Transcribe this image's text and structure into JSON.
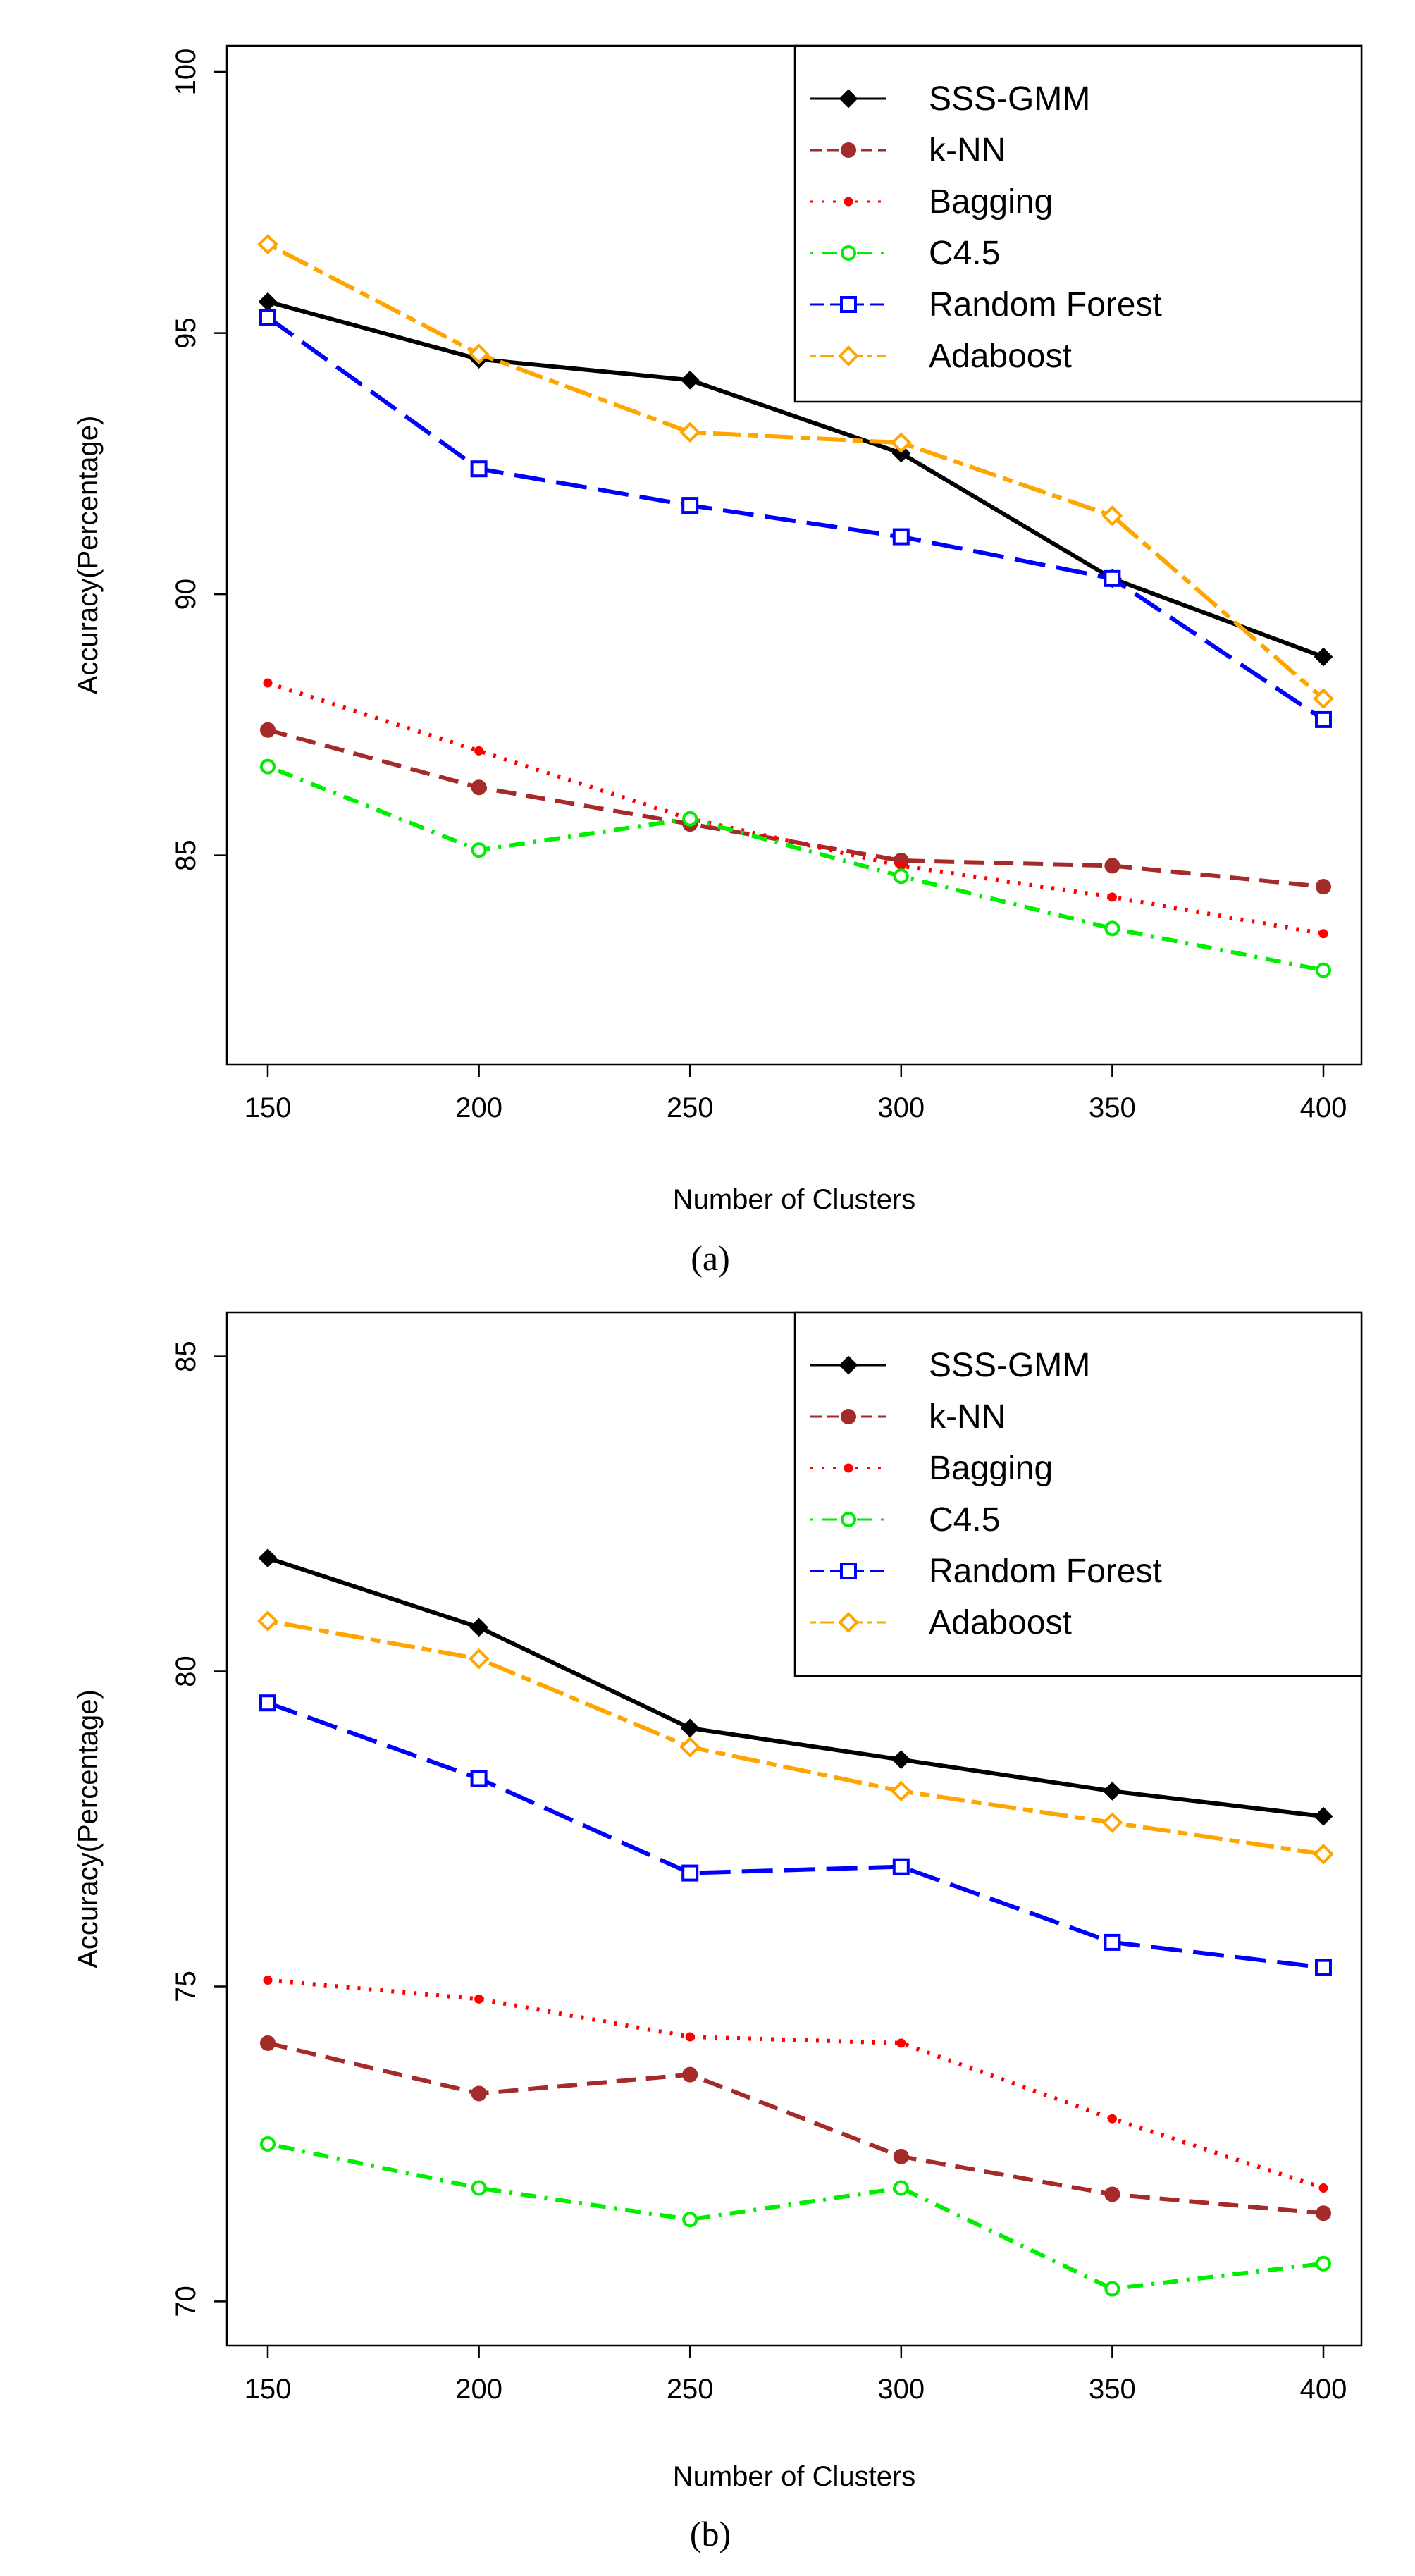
{
  "chart_data": [
    {
      "type": "line",
      "panel_label": "a",
      "xlabel": "Number of Clusters",
      "ylabel": "Accuracy(Percentage)",
      "x": [
        150,
        200,
        250,
        300,
        350,
        400
      ],
      "xlim": [
        150,
        400
      ],
      "ylim": [
        81,
        100.5
      ],
      "yticks": [
        85,
        90,
        95,
        100
      ],
      "series": [
        {
          "name": "SSS-GMM",
          "color": "#000000",
          "dash": "solid",
          "marker": "diamond-filled",
          "values": [
            95.6,
            94.5,
            94.1,
            92.7,
            90.3,
            88.8
          ]
        },
        {
          "name": "k-NN",
          "color": "#a52a2a",
          "dash": "dashed",
          "marker": "circle-filled",
          "values": [
            87.4,
            86.3,
            85.6,
            84.9,
            84.8,
            84.4
          ]
        },
        {
          "name": "Bagging",
          "color": "#ff0000",
          "dash": "dotted",
          "marker": "dot",
          "values": [
            88.3,
            87.0,
            85.7,
            84.8,
            84.2,
            83.5
          ]
        },
        {
          "name": "C4.5",
          "color": "#00ee00",
          "dash": "dotdash",
          "marker": "circle-open",
          "values": [
            86.7,
            85.1,
            85.7,
            84.6,
            83.6,
            82.8
          ]
        },
        {
          "name": "Random Forest",
          "color": "#0000ff",
          "dash": "longdash",
          "marker": "square-open",
          "values": [
            95.3,
            92.4,
            91.7,
            91.1,
            90.3,
            87.6
          ]
        },
        {
          "name": "Adaboost",
          "color": "#ffa500",
          "dash": "twodash",
          "marker": "diamond-open",
          "values": [
            96.7,
            94.6,
            93.1,
            92.9,
            91.5,
            88.0
          ]
        }
      ]
    },
    {
      "type": "line",
      "panel_label": "b",
      "xlabel": "Number of Clusters",
      "ylabel": "Accuracy(Percentage)",
      "x": [
        150,
        200,
        250,
        300,
        350,
        400
      ],
      "xlim": [
        150,
        400
      ],
      "ylim": [
        69.3,
        85.7
      ],
      "yticks": [
        70,
        75,
        80,
        85
      ],
      "series": [
        {
          "name": "SSS-GMM",
          "color": "#000000",
          "dash": "solid",
          "marker": "diamond-filled",
          "values": [
            81.8,
            80.7,
            79.1,
            78.6,
            78.1,
            77.7
          ]
        },
        {
          "name": "k-NN",
          "color": "#a52a2a",
          "dash": "dashed",
          "marker": "circle-filled",
          "values": [
            74.1,
            73.3,
            73.6,
            72.3,
            71.7,
            71.4
          ]
        },
        {
          "name": "Bagging",
          "color": "#ff0000",
          "dash": "dotted",
          "marker": "dot",
          "values": [
            75.1,
            74.8,
            74.2,
            74.1,
            72.9,
            71.8
          ]
        },
        {
          "name": "C4.5",
          "color": "#00ee00",
          "dash": "dotdash",
          "marker": "circle-open",
          "values": [
            72.5,
            71.8,
            71.3,
            71.8,
            70.2,
            70.6
          ]
        },
        {
          "name": "Random Forest",
          "color": "#0000ff",
          "dash": "longdash",
          "marker": "square-open",
          "values": [
            79.5,
            78.3,
            76.8,
            76.9,
            75.7,
            75.3
          ]
        },
        {
          "name": "Adaboost",
          "color": "#ffa500",
          "dash": "twodash",
          "marker": "diamond-open",
          "values": [
            80.8,
            80.2,
            78.8,
            78.1,
            77.6,
            77.1
          ]
        }
      ]
    }
  ],
  "captions": [
    "(a)",
    "(b)"
  ]
}
